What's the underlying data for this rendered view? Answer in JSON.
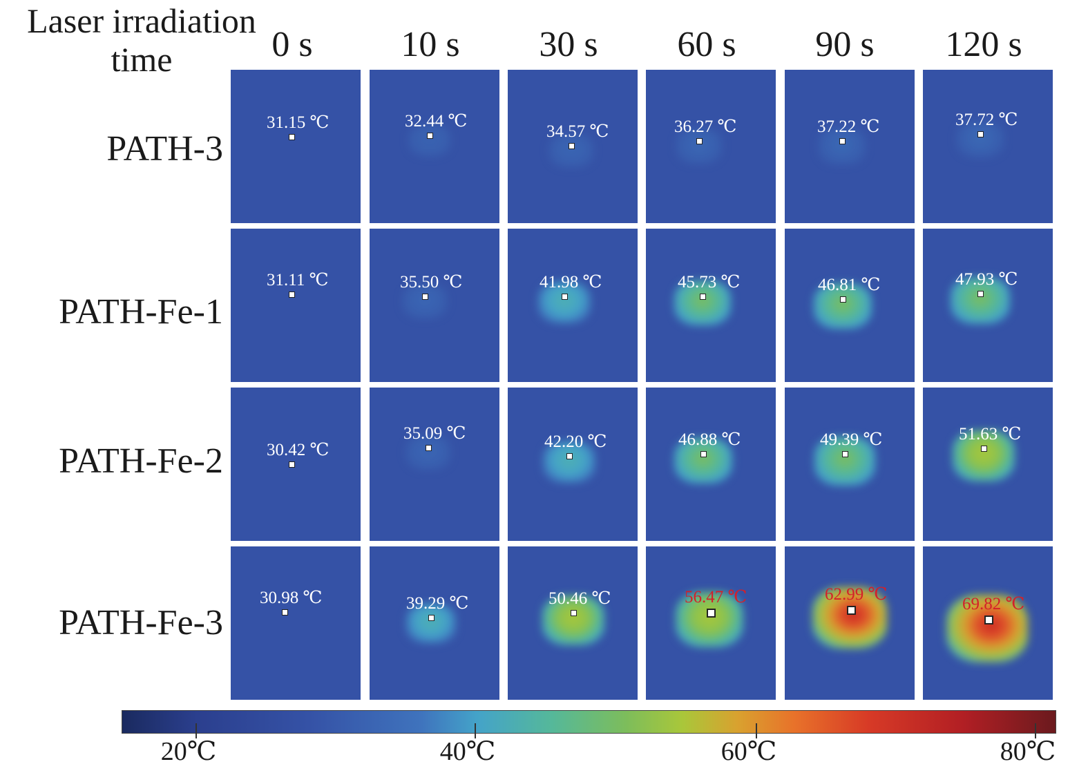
{
  "header": {
    "line1": "Laser irradiation",
    "line2": "time"
  },
  "columns": [
    "0 s",
    "10 s",
    "30 s",
    "60 s",
    "90 s",
    "120 s"
  ],
  "rows": [
    {
      "label": "PATH-3",
      "temps": [
        "31.15 ℃",
        "32.44 ℃",
        "34.57 ℃",
        "36.27 ℃",
        "37.22 ℃",
        "37.72 ℃"
      ]
    },
    {
      "label": "PATH-Fe-1",
      "temps": [
        "31.11 ℃",
        "35.50 ℃",
        "41.98 ℃",
        "45.73 ℃",
        "46.81 ℃",
        "47.93 ℃"
      ]
    },
    {
      "label": "PATH-Fe-2",
      "temps": [
        "30.42 ℃",
        "35.09 ℃",
        "42.20 ℃",
        "46.88 ℃",
        "49.39 ℃",
        "51.63 ℃"
      ]
    },
    {
      "label": "PATH-Fe-3",
      "temps": [
        "30.98 ℃",
        "39.29 ℃",
        "50.46 ℃",
        "56.47 ℃",
        "62.99 ℃",
        "69.82 ℃"
      ]
    }
  ],
  "temperature_values": [
    [
      31.15,
      32.44,
      34.57,
      36.27,
      37.22,
      37.72
    ],
    [
      31.11,
      35.5,
      41.98,
      45.73,
      46.81,
      47.93
    ],
    [
      30.42,
      35.09,
      42.2,
      46.88,
      49.39,
      51.63
    ],
    [
      30.98,
      39.29,
      50.46,
      56.47,
      62.99,
      69.82
    ]
  ],
  "colorbar": {
    "labels": [
      "20℃",
      "40℃",
      "60℃",
      "80℃"
    ],
    "values": [
      20,
      40,
      60,
      80
    ],
    "range": [
      14.5,
      81
    ],
    "colors": {
      "cold": "#1a2a5f",
      "background": "#3552a6",
      "mid": "#a9c73a",
      "hot": "#b21f24"
    }
  },
  "alert_color": "#d3202a"
}
